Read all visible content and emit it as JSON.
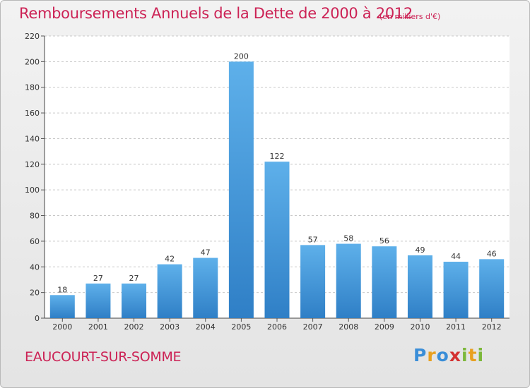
{
  "header": {
    "title": "Remboursements Annuels de la Dette de 2000 à 2012",
    "unit": "(en milliers d'€)"
  },
  "footer": {
    "commune": "EAUCOURT-SUR-SOMME",
    "logo_text": "Proxiti",
    "logo_letters": [
      {
        "ch": "P",
        "color": "#3a8ed8"
      },
      {
        "ch": "r",
        "color": "#e8a020"
      },
      {
        "ch": "o",
        "color": "#3a8ed8"
      },
      {
        "ch": "x",
        "color": "#d43030"
      },
      {
        "ch": "i",
        "color": "#7cb83a"
      },
      {
        "ch": "t",
        "color": "#e8a020"
      },
      {
        "ch": "i",
        "color": "#7cb83a"
      }
    ]
  },
  "chart_data": {
    "type": "bar",
    "title": "Remboursements Annuels de la Dette de 2000 à 2012",
    "subtitle": "(en milliers d'€)",
    "xlabel": "",
    "ylabel": "",
    "categories": [
      "2000",
      "2001",
      "2002",
      "2003",
      "2004",
      "2005",
      "2006",
      "2007",
      "2008",
      "2009",
      "2010",
      "2011",
      "2012"
    ],
    "values": [
      18,
      27,
      27,
      42,
      47,
      200,
      122,
      57,
      58,
      56,
      49,
      44,
      46
    ],
    "ylim": [
      0,
      220
    ],
    "yticks": [
      0,
      20,
      40,
      60,
      80,
      100,
      120,
      140,
      160,
      180,
      200,
      220
    ],
    "grid": "horizontal-dashed",
    "legend": "none",
    "bar_color": "#4a9ee0"
  }
}
